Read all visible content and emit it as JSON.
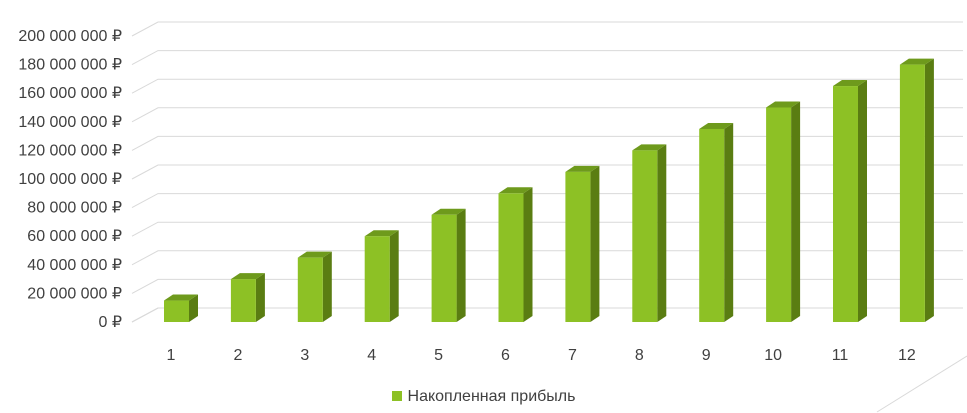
{
  "chart_data": {
    "type": "bar",
    "style": "3d-column",
    "categories": [
      "1",
      "2",
      "3",
      "4",
      "5",
      "6",
      "7",
      "8",
      "9",
      "10",
      "11",
      "12"
    ],
    "series": [
      {
        "name": "Накопленная прибыль",
        "values": [
          15000000,
          30000000,
          45000000,
          60000000,
          75000000,
          90000000,
          105000000,
          120000000,
          135000000,
          150000000,
          165000000,
          180000000
        ]
      }
    ],
    "y_tick_labels": [
      "0 ₽",
      "20 000 000 ₽",
      "40 000 000 ₽",
      "60 000 000 ₽",
      "80 000 000 ₽",
      "100 000 000 ₽",
      "120 000 000 ₽",
      "140 000 000 ₽",
      "160 000 000 ₽",
      "180 000 000 ₽",
      "200 000 000 ₽"
    ],
    "ylim": [
      0,
      200000000
    ],
    "grid": true,
    "legend": "bottom",
    "colors": {
      "bar_front": "#8dc125",
      "bar_side": "#5a7d12",
      "bar_top": "#6e9a1c",
      "grid": "#d9d9d9",
      "text": "#404040"
    }
  }
}
